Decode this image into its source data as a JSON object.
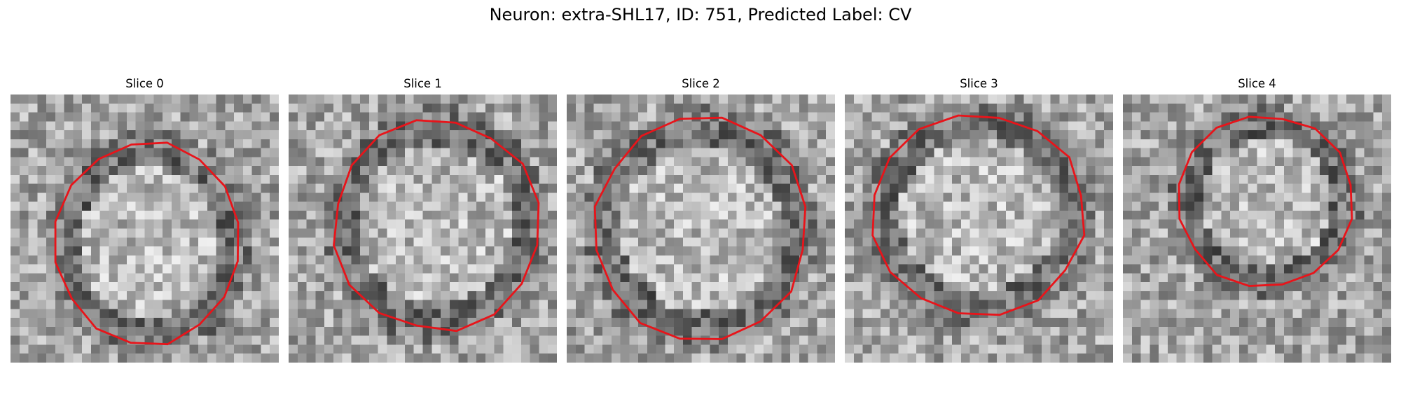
{
  "figure": {
    "title": "Neuron: extra-SHL17, ID: 751, Predicted Label: CV"
  },
  "panels": [
    {
      "title": "Slice 0"
    },
    {
      "title": "Slice 1"
    },
    {
      "title": "Slice 2"
    },
    {
      "title": "Slice 3"
    },
    {
      "title": "Slice 4"
    }
  ],
  "colors": {
    "contour": "#e8141a",
    "background": "#ffffff"
  }
}
